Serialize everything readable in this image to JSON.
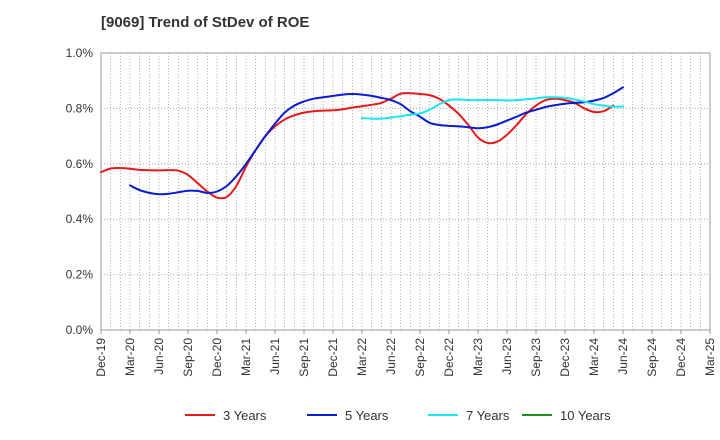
{
  "chart_data": {
    "type": "line",
    "title": "[9069]  Trend of StDev of ROE",
    "xlabel": "",
    "ylabel": "",
    "ylim": [
      0,
      1.0
    ],
    "y_ticks": [
      "0.0%",
      "0.2%",
      "0.4%",
      "0.6%",
      "0.8%",
      "1.0%"
    ],
    "x_tick_labels": [
      "Dec-19",
      "Mar-20",
      "Jun-20",
      "Sep-20",
      "Dec-20",
      "Mar-21",
      "Jun-21",
      "Sep-21",
      "Dec-21",
      "Mar-22",
      "Jun-22",
      "Sep-22",
      "Dec-22",
      "Mar-23",
      "Jun-23",
      "Sep-23",
      "Dec-23",
      "Mar-24",
      "Jun-24",
      "Sep-24",
      "Dec-24",
      "Mar-25"
    ],
    "grid": true,
    "legend_position": "bottom",
    "series": [
      {
        "name": "3 Years",
        "color": "#e31a1c",
        "points": [
          [
            0,
            0.57
          ],
          [
            1,
            0.583
          ],
          [
            2,
            0.585
          ],
          [
            3,
            0.582
          ],
          [
            4,
            0.578
          ],
          [
            5,
            0.577
          ],
          [
            6,
            0.576
          ],
          [
            7,
            0.577
          ],
          [
            8,
            0.575
          ],
          [
            9,
            0.56
          ],
          [
            10,
            0.53
          ],
          [
            11,
            0.5
          ],
          [
            12,
            0.478
          ],
          [
            13,
            0.48
          ],
          [
            14,
            0.52
          ],
          [
            15,
            0.59
          ],
          [
            16,
            0.65
          ],
          [
            17,
            0.7
          ],
          [
            18,
            0.735
          ],
          [
            19,
            0.76
          ],
          [
            20,
            0.775
          ],
          [
            21,
            0.785
          ],
          [
            22,
            0.79
          ],
          [
            23,
            0.792
          ],
          [
            24,
            0.793
          ],
          [
            25,
            0.797
          ],
          [
            26,
            0.803
          ],
          [
            27,
            0.808
          ],
          [
            28,
            0.813
          ],
          [
            29,
            0.82
          ],
          [
            30,
            0.835
          ],
          [
            31,
            0.853
          ],
          [
            32,
            0.855
          ],
          [
            33,
            0.852
          ],
          [
            34,
            0.848
          ],
          [
            35,
            0.835
          ],
          [
            36,
            0.81
          ],
          [
            37,
            0.78
          ],
          [
            38,
            0.74
          ],
          [
            39,
            0.695
          ],
          [
            40,
            0.675
          ],
          [
            41,
            0.68
          ],
          [
            42,
            0.705
          ],
          [
            43,
            0.74
          ],
          [
            44,
            0.78
          ],
          [
            45,
            0.81
          ],
          [
            46,
            0.83
          ],
          [
            47,
            0.835
          ],
          [
            48,
            0.83
          ],
          [
            49,
            0.82
          ],
          [
            50,
            0.8
          ],
          [
            51,
            0.787
          ],
          [
            52,
            0.79
          ],
          [
            53,
            0.81
          ]
        ]
      },
      {
        "name": "5 Years",
        "color": "#0a1ccc",
        "points": [
          [
            3,
            0.522
          ],
          [
            4,
            0.505
          ],
          [
            5,
            0.495
          ],
          [
            6,
            0.49
          ],
          [
            7,
            0.492
          ],
          [
            8,
            0.497
          ],
          [
            9,
            0.503
          ],
          [
            10,
            0.502
          ],
          [
            11,
            0.495
          ],
          [
            12,
            0.5
          ],
          [
            13,
            0.52
          ],
          [
            14,
            0.555
          ],
          [
            15,
            0.6
          ],
          [
            16,
            0.65
          ],
          [
            17,
            0.7
          ],
          [
            18,
            0.745
          ],
          [
            19,
            0.785
          ],
          [
            20,
            0.81
          ],
          [
            21,
            0.825
          ],
          [
            22,
            0.835
          ],
          [
            23,
            0.84
          ],
          [
            24,
            0.845
          ],
          [
            25,
            0.85
          ],
          [
            26,
            0.852
          ],
          [
            27,
            0.85
          ],
          [
            28,
            0.845
          ],
          [
            29,
            0.838
          ],
          [
            30,
            0.83
          ],
          [
            31,
            0.815
          ],
          [
            32,
            0.79
          ],
          [
            33,
            0.77
          ],
          [
            34,
            0.748
          ],
          [
            35,
            0.74
          ],
          [
            36,
            0.737
          ],
          [
            37,
            0.735
          ],
          [
            38,
            0.732
          ],
          [
            39,
            0.728
          ],
          [
            40,
            0.732
          ],
          [
            41,
            0.742
          ],
          [
            42,
            0.756
          ],
          [
            43,
            0.77
          ],
          [
            44,
            0.785
          ],
          [
            45,
            0.795
          ],
          [
            46,
            0.805
          ],
          [
            47,
            0.812
          ],
          [
            48,
            0.817
          ],
          [
            49,
            0.82
          ],
          [
            50,
            0.822
          ],
          [
            51,
            0.828
          ],
          [
            52,
            0.838
          ],
          [
            53,
            0.855
          ],
          [
            54,
            0.876
          ]
        ]
      },
      {
        "name": "7 Years",
        "color": "#19e6f0",
        "points": [
          [
            27,
            0.765
          ],
          [
            28,
            0.763
          ],
          [
            29,
            0.763
          ],
          [
            30,
            0.767
          ],
          [
            31,
            0.772
          ],
          [
            32,
            0.777
          ],
          [
            33,
            0.782
          ],
          [
            34,
            0.795
          ],
          [
            35,
            0.815
          ],
          [
            36,
            0.83
          ],
          [
            37,
            0.832
          ],
          [
            38,
            0.83
          ],
          [
            39,
            0.83
          ],
          [
            40,
            0.83
          ],
          [
            41,
            0.83
          ],
          [
            42,
            0.829
          ],
          [
            43,
            0.83
          ],
          [
            44,
            0.833
          ],
          [
            45,
            0.836
          ],
          [
            46,
            0.84
          ],
          [
            47,
            0.84
          ],
          [
            48,
            0.838
          ],
          [
            49,
            0.832
          ],
          [
            50,
            0.825
          ],
          [
            51,
            0.815
          ],
          [
            52,
            0.81
          ],
          [
            53,
            0.806
          ],
          [
            54,
            0.807
          ]
        ]
      },
      {
        "name": "10 Years",
        "color": "#1e8c1e",
        "points": []
      }
    ]
  }
}
